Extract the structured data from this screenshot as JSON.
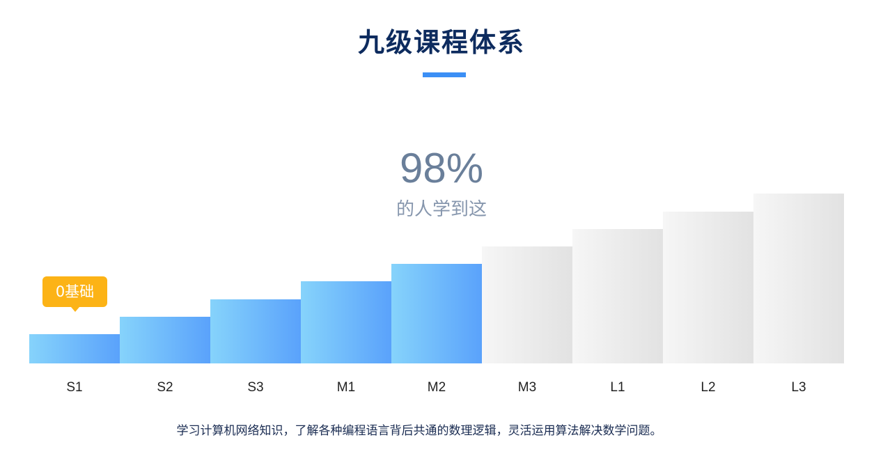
{
  "header": {
    "title": "九级课程体系"
  },
  "stat": {
    "value": "98%",
    "caption": "的人学到这"
  },
  "badge": {
    "label": "0基础"
  },
  "chart_data": {
    "type": "bar",
    "title": "九级课程体系",
    "categories": [
      "S1",
      "S2",
      "S3",
      "M1",
      "M2",
      "M3",
      "L1",
      "L2",
      "L3"
    ],
    "values": [
      1,
      2,
      3,
      4,
      5,
      6,
      7,
      8,
      9
    ],
    "completed_levels": [
      "S1",
      "S2",
      "S3",
      "M1",
      "M2"
    ],
    "annotation": {
      "category": "S1",
      "text": "0基础"
    },
    "colors": {
      "completed": "#5aa2fb",
      "remaining": "#e2e2e2",
      "badge": "#fcb316",
      "title": "#0d2b5e"
    },
    "grid": false,
    "legend": "none"
  },
  "footer": {
    "description": "学习计算机网络知识，了解各种编程语言背后共通的数理逻辑，灵活运用算法解决数学问题。"
  }
}
